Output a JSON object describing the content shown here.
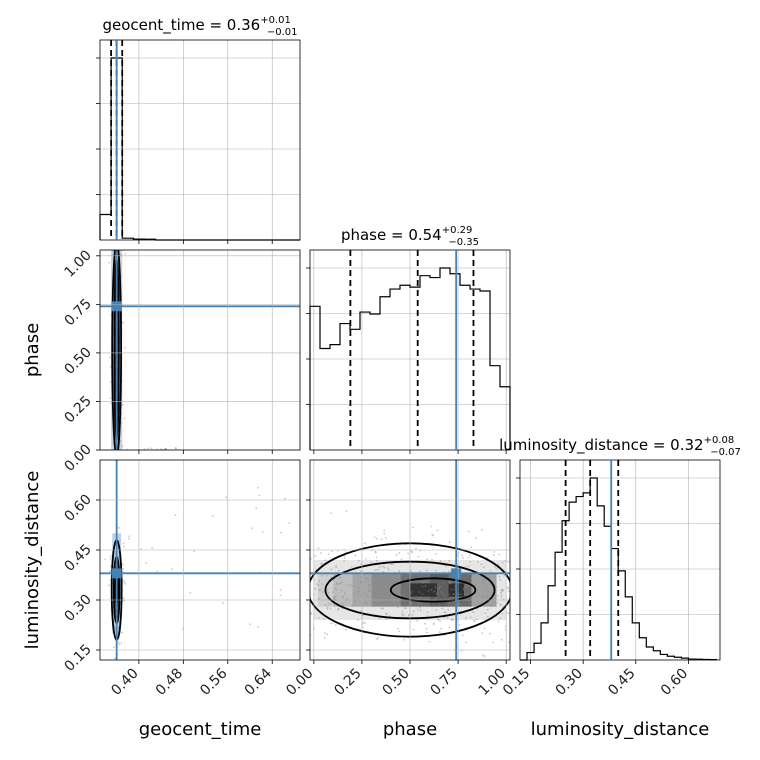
{
  "chart_data": {
    "type": "corner",
    "parameters": [
      "geocent_time",
      "phase",
      "luminosity_distance"
    ],
    "truth": {
      "geocent_time": 0.36,
      "phase": 0.74,
      "luminosity_distance": 0.38
    },
    "truth_color": "#4682b4",
    "diagonal": [
      {
        "parameter": "geocent_time",
        "title": {
          "name": "geocent_time",
          "median": "0.36",
          "plus": "+0.01",
          "minus": "−0.01"
        },
        "xlim": [
          0.33,
          0.69
        ],
        "quantiles": [
          0.35,
          0.36,
          0.37
        ],
        "hist_bins": [
          0.33,
          0.35,
          0.37,
          0.39,
          0.41,
          0.43,
          0.45,
          0.47,
          0.49,
          0.51,
          0.53,
          0.55,
          0.57,
          0.59,
          0.61,
          0.63,
          0.65,
          0.67,
          0.69
        ],
        "hist_counts": [
          0.14,
          1.0,
          0.01,
          0.005,
          0.004,
          0,
          0,
          0,
          0,
          0,
          0,
          0,
          0,
          0,
          0,
          0,
          0,
          0
        ]
      },
      {
        "parameter": "phase",
        "title": {
          "name": "phase",
          "median": "0.54",
          "plus": "+0.29",
          "minus": "−0.35"
        },
        "xlim": [
          -0.02,
          1.02
        ],
        "quantiles": [
          0.19,
          0.54,
          0.83
        ],
        "hist_bins": [
          -0.02,
          0.032,
          0.084,
          0.136,
          0.188,
          0.24,
          0.292,
          0.344,
          0.396,
          0.448,
          0.5,
          0.552,
          0.604,
          0.656,
          0.708,
          0.76,
          0.812,
          0.864,
          0.916,
          0.968,
          1.02
        ],
        "hist_counts": [
          0.75,
          0.53,
          0.55,
          0.66,
          0.63,
          0.72,
          0.71,
          0.8,
          0.84,
          0.86,
          0.85,
          0.91,
          0.9,
          0.95,
          0.92,
          0.86,
          0.84,
          0.83,
          0.44,
          0.33
        ]
      },
      {
        "parameter": "luminosity_distance",
        "title": {
          "name": "luminosity_distance",
          "median": "0.32",
          "plus": "+0.08",
          "minus": "−0.07"
        },
        "xlim": [
          0.12,
          0.69
        ],
        "quantiles": [
          0.25,
          0.32,
          0.4
        ],
        "hist_bins": [
          0.12,
          0.14,
          0.16,
          0.18,
          0.2,
          0.22,
          0.24,
          0.26,
          0.28,
          0.3,
          0.32,
          0.34,
          0.36,
          0.38,
          0.4,
          0.42,
          0.44,
          0.46,
          0.48,
          0.5,
          0.52,
          0.54,
          0.56,
          0.58,
          0.6,
          0.62,
          0.64,
          0.66,
          0.68
        ],
        "hist_counts": [
          0.0,
          0.04,
          0.09,
          0.2,
          0.4,
          0.58,
          0.75,
          0.85,
          0.88,
          0.9,
          0.98,
          0.83,
          0.72,
          0.6,
          0.48,
          0.34,
          0.2,
          0.12,
          0.07,
          0.05,
          0.03,
          0.02,
          0.015,
          0.01,
          0.005,
          0.004,
          0.003,
          0.002
        ]
      }
    ],
    "off_diagonal": [
      {
        "x": "geocent_time",
        "y": "phase",
        "xlim": [
          0.33,
          0.69
        ],
        "ylim": [
          0.0,
          1.03
        ]
      },
      {
        "x": "geocent_time",
        "y": "luminosity_distance",
        "xlim": [
          0.33,
          0.69
        ],
        "ylim": [
          0.12,
          0.72
        ]
      },
      {
        "x": "phase",
        "y": "luminosity_distance",
        "xlim": [
          -0.02,
          1.02
        ],
        "ylim": [
          0.12,
          0.72
        ]
      }
    ],
    "ticks": {
      "geocent_time": [
        "0.40",
        "0.48",
        "0.56",
        "0.64"
      ],
      "phase": [
        "0.00",
        "0.25",
        "0.50",
        "0.75",
        "1.00"
      ],
      "luminosity_distance_x": [
        "0.15",
        "0.30",
        "0.45",
        "0.60"
      ],
      "luminosity_distance_y": [
        "0.15",
        "0.30",
        "0.45",
        "0.60"
      ]
    },
    "axis_labels": {
      "x_geocent_time": "geocent_time",
      "x_phase": "phase",
      "x_luminosity_distance": "luminosity_distance",
      "y_phase": "phase",
      "y_luminosity_distance": "luminosity_distance"
    },
    "grid": true
  }
}
